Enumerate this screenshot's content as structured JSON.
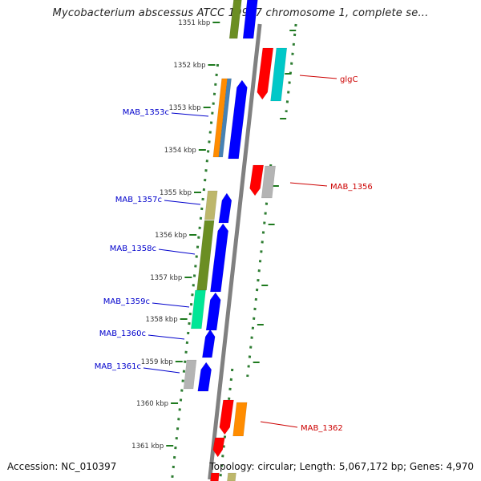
{
  "title": "Mycobacterium abscessus ATCC 19977 chromosome 1, complete se...",
  "footer": {
    "accession": "Accession: NC_010397",
    "summary": "Topology: circular; Length: 5,067,172 bp; Genes: 4,970"
  },
  "colors": {
    "backbone": "#808080",
    "dots": "#2e7d32",
    "ticks": "#1e7a1e",
    "blue": "#0000ff",
    "red": "#ff0000",
    "cyan": "#00c8c8",
    "olive": "#6b8e23",
    "khaki": "#bdb76b",
    "orange": "#ff8c00",
    "steelblue": "#4682b4",
    "mint": "#00e696",
    "gray": "#b4b4b4",
    "label_left": "#0000cc",
    "label_right": "#cc0000"
  },
  "scale_labels": [
    {
      "kbp": 1351,
      "text": "1351 kbp"
    },
    {
      "kbp": 1352,
      "text": "1352 kbp"
    },
    {
      "kbp": 1353,
      "text": "1353 kbp"
    },
    {
      "kbp": 1354,
      "text": "1354 kbp"
    },
    {
      "kbp": 1355,
      "text": "1355 kbp"
    },
    {
      "kbp": 1356,
      "text": "1356 kbp"
    },
    {
      "kbp": 1357,
      "text": "1357 kbp"
    },
    {
      "kbp": 1358,
      "text": "1358 kbp"
    },
    {
      "kbp": 1359,
      "text": "1359 kbp"
    },
    {
      "kbp": 1360,
      "text": "1360 kbp"
    },
    {
      "kbp": 1361,
      "text": "1361 kbp"
    }
  ],
  "gene_labels": [
    {
      "text": "glgC",
      "side": "right"
    },
    {
      "text": "MAB_1353c",
      "side": "left"
    },
    {
      "text": "MAB_1356",
      "side": "right"
    },
    {
      "text": "MAB_1357c",
      "side": "left"
    },
    {
      "text": "MAB_1358c",
      "side": "left"
    },
    {
      "text": "MAB_1359c",
      "side": "left"
    },
    {
      "text": "MAB_1360c",
      "side": "left"
    },
    {
      "text": "MAB_1361c",
      "side": "left"
    },
    {
      "text": "MAB_1362",
      "side": "right"
    }
  ]
}
